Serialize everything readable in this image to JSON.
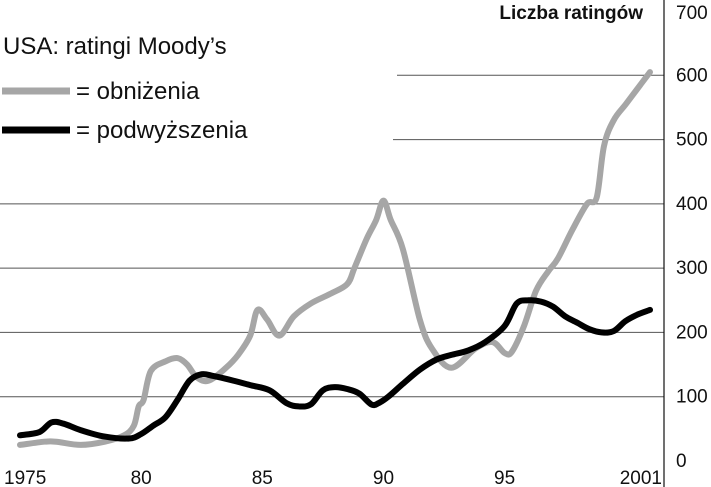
{
  "chart_data": {
    "type": "line",
    "title": "USA: ratingi Moody’s",
    "ylabel": "Liczba ratingów",
    "xlim": [
      1975,
      2001
    ],
    "ylim": [
      0,
      700
    ],
    "x_ticks": [
      "1975",
      "80",
      "85",
      "90",
      "95",
      "2001"
    ],
    "x_tick_values": [
      1975,
      1980,
      1985,
      1990,
      1995,
      2001
    ],
    "y_ticks": [
      "0",
      "100",
      "200",
      "300",
      "400",
      "500",
      "600",
      "700"
    ],
    "y_tick_values": [
      0,
      100,
      200,
      300,
      400,
      500,
      600,
      700
    ],
    "grid": "horizontal",
    "legend_position": "top-left",
    "series": [
      {
        "name": "= obniżenia",
        "color": "#a6a6a6",
        "x": [
          1975.0,
          1976.0,
          1976.5,
          1977.5,
          1978.5,
          1979.3,
          1979.7,
          1979.9,
          1980.1,
          1980.4,
          1981.0,
          1981.5,
          1981.9,
          1982.3,
          1982.8,
          1983.5,
          1984.0,
          1984.5,
          1984.8,
          1985.2,
          1985.7,
          1986.3,
          1987.0,
          1987.8,
          1988.5,
          1988.8,
          1989.3,
          1989.7,
          1990.0,
          1990.3,
          1990.8,
          1991.5,
          1992.0,
          1992.8,
          1993.8,
          1994.5,
          1995.0,
          1995.3,
          1995.8,
          1996.3,
          1996.8,
          1997.2,
          1997.8,
          1998.4,
          1998.8,
          1999.1,
          1999.5,
          2000.0,
          2000.6,
          2001.0
        ],
        "values": [
          25,
          30,
          30,
          25,
          30,
          40,
          55,
          85,
          95,
          140,
          155,
          160,
          150,
          130,
          125,
          145,
          165,
          195,
          235,
          220,
          195,
          225,
          245,
          260,
          275,
          300,
          345,
          375,
          405,
          375,
          330,
          220,
          175,
          145,
          175,
          185,
          168,
          170,
          210,
          265,
          295,
          315,
          360,
          400,
          410,
          490,
          530,
          555,
          585,
          605
        ]
      },
      {
        "name": "= podwyższenia",
        "color": "#000000",
        "x": [
          1975.0,
          1975.8,
          1976.3,
          1976.8,
          1977.5,
          1978.5,
          1979.5,
          1980.0,
          1980.5,
          1981.0,
          1981.5,
          1982.0,
          1982.5,
          1983.0,
          1983.8,
          1984.5,
          1985.3,
          1986.0,
          1986.5,
          1987.0,
          1987.5,
          1988.0,
          1988.5,
          1989.0,
          1989.5,
          1989.8,
          1990.2,
          1990.8,
          1991.5,
          1992.2,
          1992.8,
          1993.5,
          1994.2,
          1995.0,
          1995.5,
          1996.0,
          1996.5,
          1997.0,
          1997.5,
          1998.0,
          1998.5,
          1999.0,
          1999.5,
          2000.0,
          2000.5,
          2001.0
        ],
        "values": [
          40,
          45,
          60,
          58,
          48,
          38,
          35,
          42,
          55,
          68,
          95,
          125,
          135,
          132,
          125,
          118,
          110,
          90,
          85,
          88,
          110,
          115,
          112,
          105,
          88,
          90,
          100,
          120,
          142,
          158,
          165,
          172,
          185,
          210,
          245,
          250,
          248,
          240,
          225,
          215,
          205,
          200,
          202,
          218,
          228,
          235
        ]
      }
    ]
  }
}
